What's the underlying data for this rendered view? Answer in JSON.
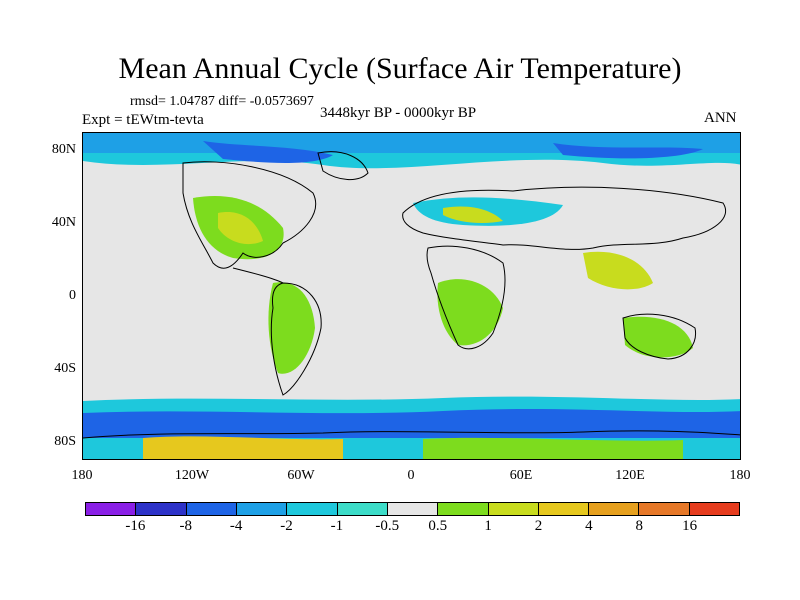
{
  "title": "Mean Annual Cycle (Surface Air Temperature)",
  "stats": "rmsd= 1.04787 diff= -0.0573697",
  "experiment": "Expt = tEWtm-tevta",
  "period": "3448kyr BP - 0000kyr BP",
  "season": "ANN",
  "lat_labels": [
    "80N",
    "40N",
    "0",
    "40S",
    "80S"
  ],
  "lon_labels": [
    "180",
    "120W",
    "60W",
    "0",
    "60E",
    "120E",
    "180"
  ],
  "colorbar": {
    "colors": [
      "#8a1fe6",
      "#2d32c8",
      "#1e64e6",
      "#1ea0e6",
      "#1ec8dc",
      "#3cdcc8",
      "#e6e6e6",
      "#7ddc1e",
      "#c8dc1e",
      "#e6c81e",
      "#e6a01e",
      "#e67828",
      "#e63c1e"
    ],
    "labels": [
      "-16",
      "-8",
      "-4",
      "-2",
      "-1",
      "-0.5",
      "0.5",
      "1",
      "2",
      "4",
      "8",
      "16"
    ]
  }
}
